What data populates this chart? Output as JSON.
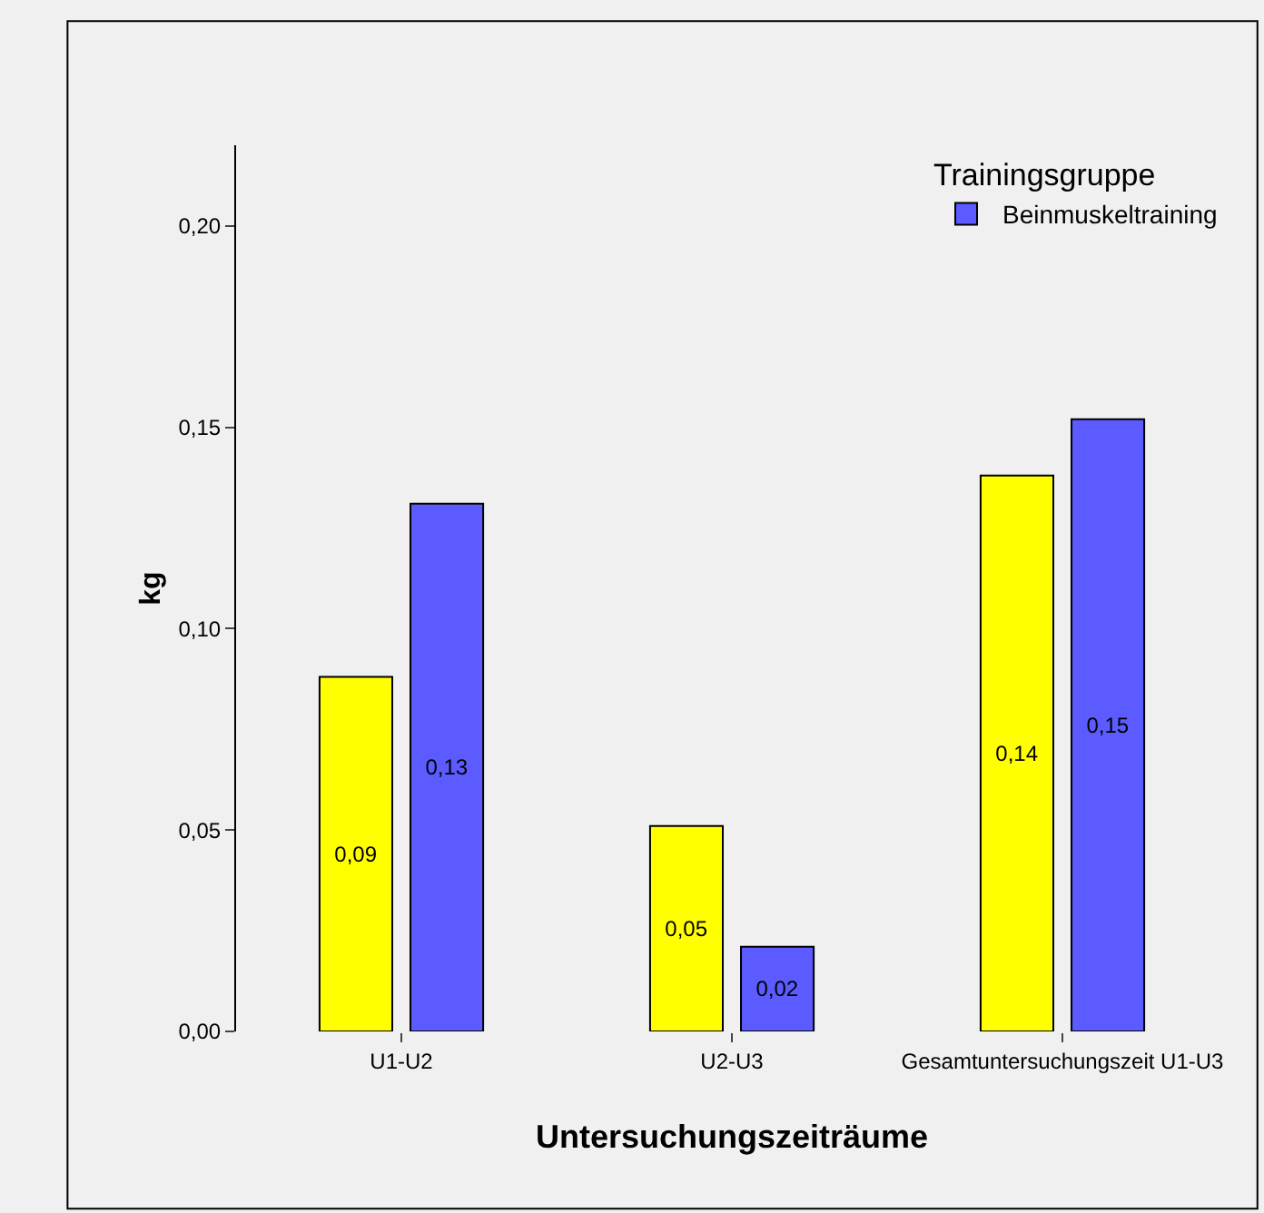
{
  "chart_data": {
    "type": "bar",
    "xlabel": "Untersuchungszeiträume",
    "ylabel": "kg",
    "legend_title": "Trainingsgruppe",
    "legend": "top right",
    "categories": [
      "U1-U2",
      "U2-U3",
      "Gesamtuntersuchungszeit U1-U3"
    ],
    "series": [
      {
        "color": "#ffff00",
        "values": [
          0.088,
          0.051,
          0.138
        ],
        "value_labels": [
          "0,09",
          "0,05",
          "0,14"
        ]
      },
      {
        "name": "Beinmuskeltraining",
        "color": "#5b5bff",
        "values": [
          0.131,
          0.021,
          0.152
        ],
        "value_labels": [
          "0,13",
          "0,02",
          "0,15"
        ]
      }
    ],
    "ylim": [
      0,
      0.22
    ],
    "yticks": [
      {
        "value": 0,
        "label": "0,00"
      },
      {
        "value": 0.05,
        "label": "0,05"
      },
      {
        "value": 0.1,
        "label": "0,10"
      },
      {
        "value": 0.15,
        "label": "0,15"
      },
      {
        "value": 0.2,
        "label": "0,20"
      }
    ],
    "grid": false
  }
}
